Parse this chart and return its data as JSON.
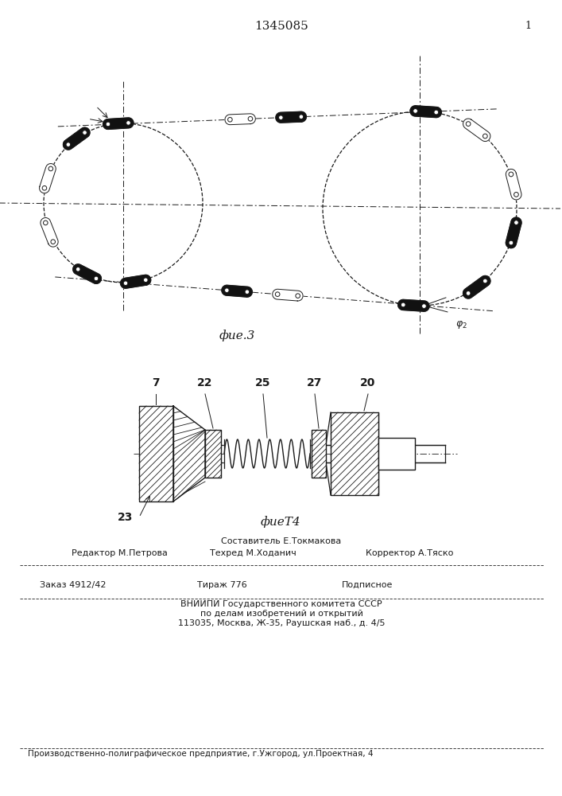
{
  "title": "1345085",
  "page_number": "1",
  "fig3_label": "фие.3",
  "fig4_label": "фиеТ4",
  "line_color": "#1a1a1a",
  "footer_composer": "Составитель Е.Токмакова",
  "footer_editor": "Редактор М.Петрова",
  "footer_techred": "Техред М.Ходанич",
  "footer_corrector": "Корректор А.Тяско",
  "footer_order": "Заказ 4912/42",
  "footer_tirazh": "Тираж 776",
  "footer_podpisnoe": "Подписное",
  "footer_vnipi": "ВНИИПИ Государственного комитета СССР",
  "footer_po_delam": "по делам изобретений и открытий",
  "footer_address": "113035, Москва, Ж-35, Раушская наб., д. 4/5",
  "footer_factory": "Производственно-полиграфическое предприятие, г.Ужгород, ул.Проектная, 4"
}
